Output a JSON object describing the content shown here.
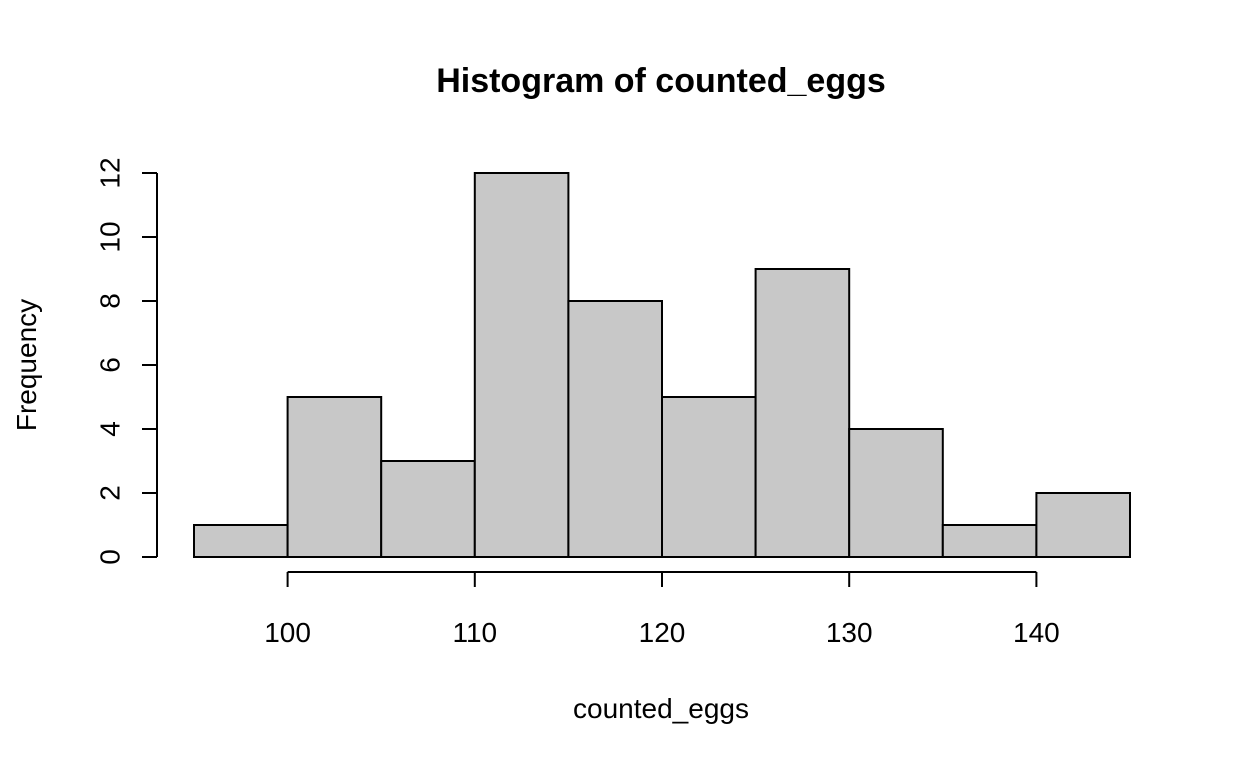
{
  "chart_data": {
    "type": "bar",
    "title": "Histogram of counted_eggs",
    "xlabel": "counted_eggs",
    "ylabel": "Frequency",
    "bins": [
      {
        "start": 95,
        "end": 100,
        "count": 1
      },
      {
        "start": 100,
        "end": 105,
        "count": 5
      },
      {
        "start": 105,
        "end": 110,
        "count": 3
      },
      {
        "start": 110,
        "end": 115,
        "count": 12
      },
      {
        "start": 115,
        "end": 120,
        "count": 8
      },
      {
        "start": 120,
        "end": 125,
        "count": 5
      },
      {
        "start": 125,
        "end": 130,
        "count": 9
      },
      {
        "start": 130,
        "end": 135,
        "count": 4
      },
      {
        "start": 135,
        "end": 140,
        "count": 1
      },
      {
        "start": 140,
        "end": 145,
        "count": 2
      }
    ],
    "xlim": [
      95,
      145
    ],
    "ylim": [
      0,
      12
    ],
    "x_ticks": [
      100,
      110,
      120,
      130,
      140
    ],
    "y_ticks": [
      0,
      2,
      4,
      6,
      8,
      10,
      12
    ],
    "grid": false,
    "legend": "none",
    "bar_color": "#c8c8c8",
    "edge_color": "#000000"
  }
}
